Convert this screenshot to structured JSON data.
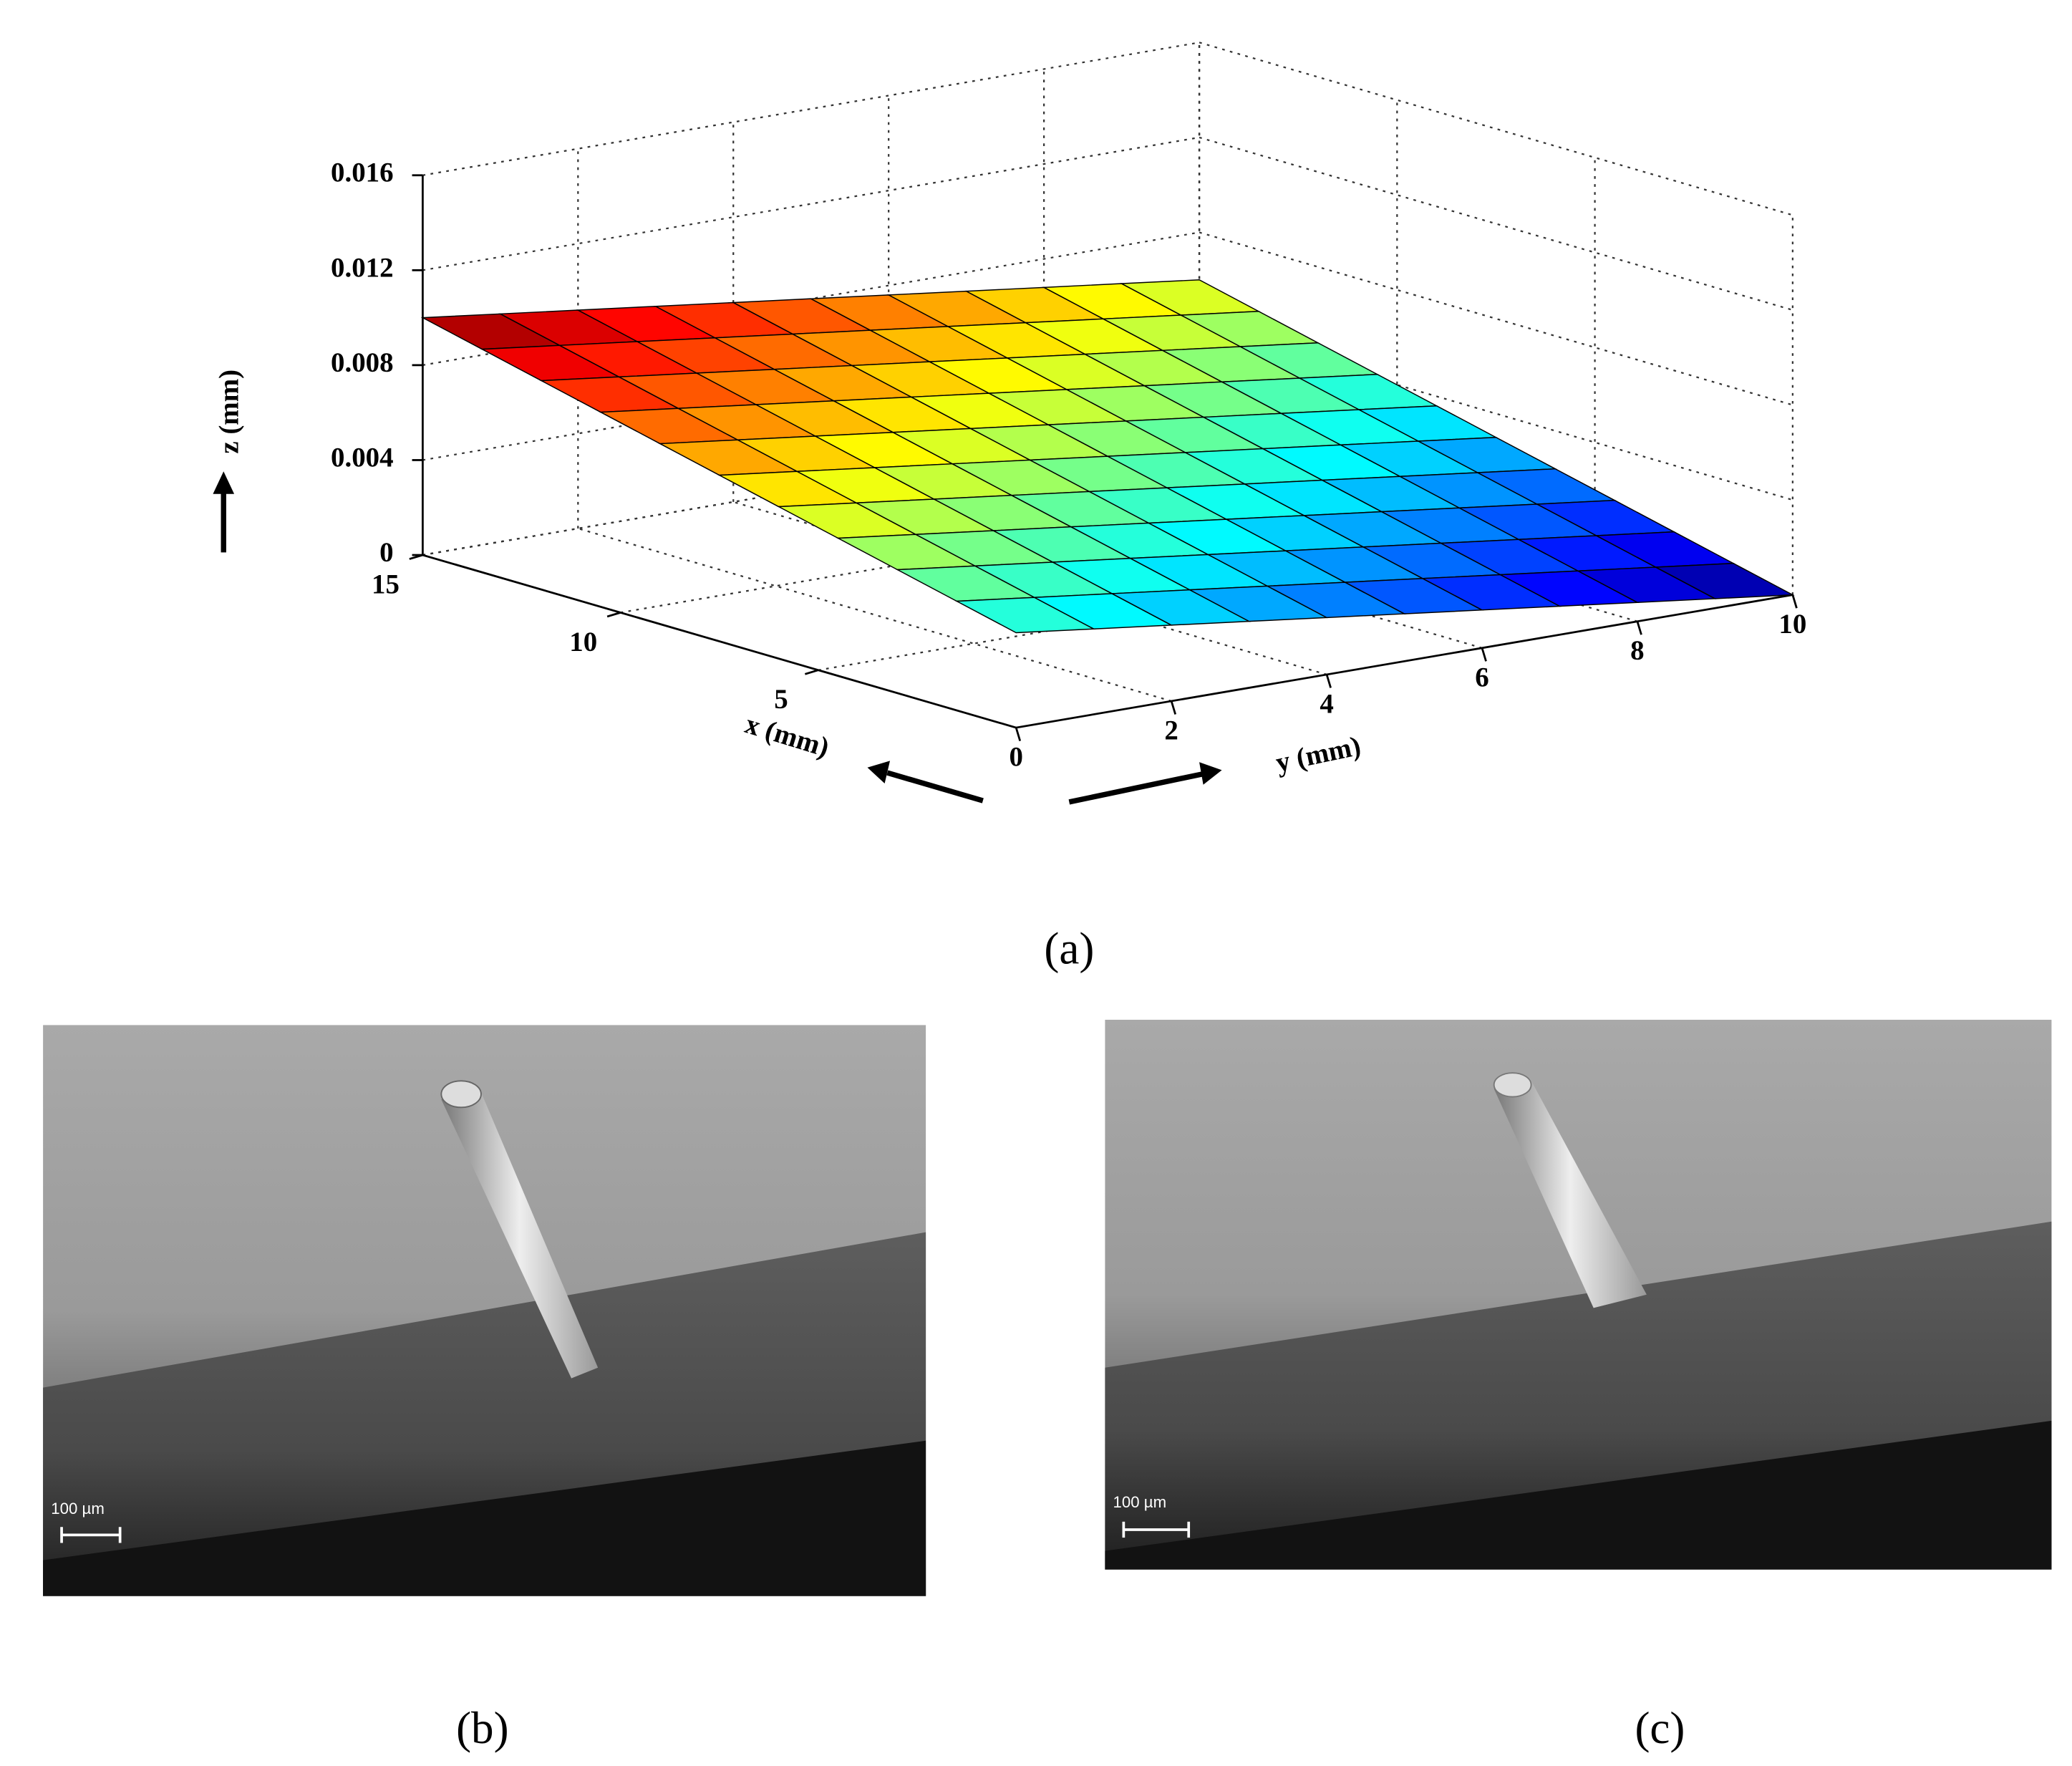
{
  "chart_data": {
    "type": "surface",
    "xlabel": "x (mm)",
    "ylabel": "y (mm)",
    "zlabel": "z (mm)",
    "x": [
      0,
      1.5,
      3,
      4.5,
      6,
      7.5,
      9,
      10.5,
      12,
      13.5,
      15
    ],
    "y": [
      0,
      1,
      2,
      3,
      4,
      5,
      6,
      7,
      8,
      9,
      10
    ],
    "z": [
      [
        0.004,
        0.0036,
        0.0032,
        0.0028,
        0.0024,
        0.002,
        0.0016,
        0.0012,
        0.0008,
        0.0004,
        0
      ],
      [
        0.0046,
        0.0042,
        0.0038,
        0.0034,
        0.003,
        0.0026,
        0.0022,
        0.0018,
        0.0014,
        0.001,
        0.0006
      ],
      [
        0.0052,
        0.0048,
        0.0044,
        0.004,
        0.0036,
        0.0032,
        0.0028,
        0.0024,
        0.002,
        0.0016,
        0.0012
      ],
      [
        0.0058,
        0.0054,
        0.005,
        0.0046,
        0.0042,
        0.0038,
        0.0034,
        0.003,
        0.0026,
        0.0022,
        0.0018
      ],
      [
        0.0064,
        0.006,
        0.0056,
        0.0052,
        0.0048,
        0.0044,
        0.004,
        0.0036,
        0.0032,
        0.0028,
        0.0024
      ],
      [
        0.007,
        0.0066,
        0.0062,
        0.0058,
        0.0054,
        0.005,
        0.0046,
        0.0042,
        0.0038,
        0.0034,
        0.003
      ],
      [
        0.0076,
        0.0072,
        0.0068,
        0.0064,
        0.006,
        0.0056,
        0.0052,
        0.0048,
        0.0044,
        0.004,
        0.0036
      ],
      [
        0.0082,
        0.0078,
        0.0074,
        0.007,
        0.0066,
        0.0062,
        0.0058,
        0.0054,
        0.005,
        0.0046,
        0.0042
      ],
      [
        0.0088,
        0.0084,
        0.008,
        0.0076,
        0.0072,
        0.0068,
        0.0064,
        0.006,
        0.0056,
        0.0052,
        0.0048
      ],
      [
        0.0094,
        0.009,
        0.0086,
        0.0082,
        0.0078,
        0.0074,
        0.007,
        0.0066,
        0.0062,
        0.0058,
        0.0054
      ],
      [
        0.01,
        0.0096,
        0.0092,
        0.0088,
        0.0084,
        0.008,
        0.0076,
        0.0072,
        0.0068,
        0.0064,
        0.006
      ]
    ],
    "colormap": "jet",
    "xlim": [
      0,
      15
    ],
    "xticks": [
      5,
      10,
      15
    ],
    "ylim": [
      0,
      10
    ],
    "yticks": [
      0,
      2,
      4,
      6,
      8,
      10
    ],
    "zlim": [
      0,
      0.016
    ],
    "zticks": [
      0,
      0.004,
      0.008,
      0.012,
      0.016
    ],
    "grid": true
  },
  "captions": [
    "(a)",
    "(b)",
    "(c)"
  ],
  "images": [
    {
      "scale_bar": "100 µm"
    },
    {
      "scale_bar": "100 µm"
    }
  ]
}
